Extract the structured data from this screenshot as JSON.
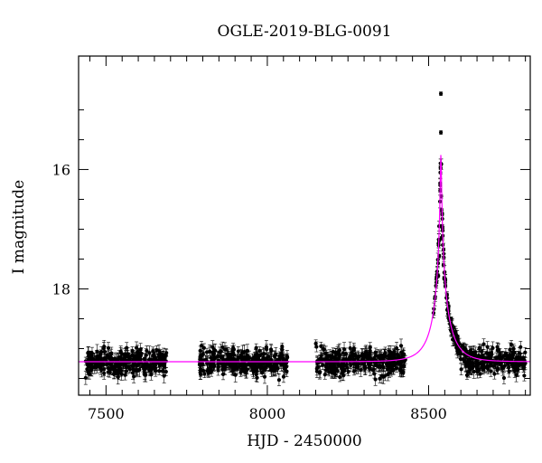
{
  "chart_data": {
    "type": "scatter",
    "title": "OGLE-2019-BLG-0091",
    "xlabel": "HJD - 2450000",
    "ylabel": "I magnitude",
    "xlim": [
      7415,
      8815
    ],
    "ylim": [
      19.78,
      14.1
    ],
    "y_inverted": true,
    "xticks": [
      7500,
      8000,
      8500
    ],
    "yticks": [
      16,
      18
    ],
    "grid": false,
    "baseline_mag": 19.22,
    "observing_seasons": [
      [
        7437,
        7690
      ],
      [
        7790,
        8065
      ],
      [
        8150,
        8430
      ],
      [
        8515,
        8800
      ]
    ],
    "observing_season_note": "dense scatter of points in each season, roughly 19.0 to 19.7 mag with error bars",
    "peak_points": [
      {
        "x": 8538,
        "y": 14.73
      },
      {
        "x": 8538,
        "y": 15.38
      },
      {
        "x": 8537,
        "y": 15.97
      },
      {
        "x": 8536,
        "y": 16.35
      },
      {
        "x": 8539,
        "y": 16.45
      },
      {
        "x": 8540,
        "y": 16.68
      },
      {
        "x": 8542,
        "y": 16.75
      },
      {
        "x": 8541,
        "y": 16.95
      },
      {
        "x": 8543,
        "y": 16.98
      },
      {
        "x": 8540,
        "y": 17.15
      },
      {
        "x": 8533,
        "y": 17.45
      },
      {
        "x": 8546,
        "y": 17.6
      },
      {
        "x": 8530,
        "y": 17.78
      },
      {
        "x": 8548,
        "y": 17.82
      },
      {
        "x": 8552,
        "y": 17.95
      },
      {
        "x": 8557,
        "y": 18.1
      },
      {
        "x": 8562,
        "y": 18.3
      },
      {
        "x": 8570,
        "y": 18.5
      },
      {
        "x": 8578,
        "y": 18.65
      },
      {
        "x": 8590,
        "y": 18.8
      },
      {
        "x": 8605,
        "y": 18.95
      }
    ],
    "model": {
      "name": "",
      "color": "#ff00ff",
      "t0": 8538,
      "peak_mag": 15.75,
      "tE": 60,
      "u0": 0.028
    },
    "point_color": "#000000"
  }
}
